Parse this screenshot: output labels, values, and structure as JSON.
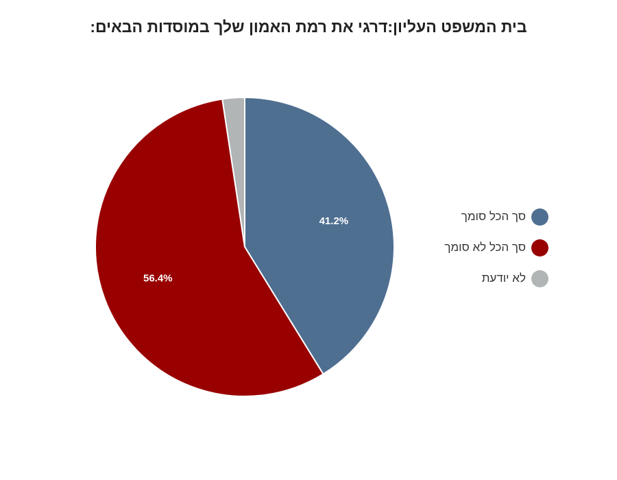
{
  "chart_data": {
    "type": "pie",
    "title": "בית המשפט העליון:דרגי את רמת האמון שלך במוסדות הבאים:",
    "slices": [
      {
        "label": "סך הכל סומך",
        "value": 41.2,
        "value_label": "41.2%",
        "color": "#4f6f91"
      },
      {
        "label": "סך הכל לא סומך",
        "value": 56.4,
        "value_label": "56.4%",
        "color": "#990000"
      },
      {
        "label": "לא יודעת",
        "value": 2.4,
        "value_label": "",
        "color": "#b1b5b6"
      }
    ],
    "legend_position": "right",
    "start_angle": "top",
    "direction": "clockwise"
  }
}
